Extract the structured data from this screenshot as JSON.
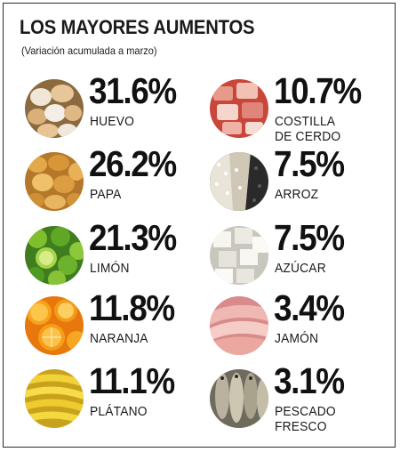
{
  "header": {
    "title": "LOS MAYORES AUMENTOS",
    "subtitle": "(Variación acumulada a marzo)"
  },
  "items": [
    {
      "value": "31.6%",
      "label": "HUEVO",
      "icon": "egg-icon"
    },
    {
      "value": "10.7%",
      "label": "COSTILLA\nDE CERDO",
      "icon": "pork-rib-icon"
    },
    {
      "value": "26.2%",
      "label": "PAPA",
      "icon": "potato-icon"
    },
    {
      "value": "7.5%",
      "label": "ARROZ",
      "icon": "rice-icon"
    },
    {
      "value": "21.3%",
      "label": "LIMÓN",
      "icon": "lemon-icon"
    },
    {
      "value": "7.5%",
      "label": "AZÚCAR",
      "icon": "sugar-icon"
    },
    {
      "value": "11.8%",
      "label": "NARANJA",
      "icon": "orange-icon"
    },
    {
      "value": "3.4%",
      "label": "JAMÓN",
      "icon": "ham-icon"
    },
    {
      "value": "11.1%",
      "label": "PLÁTANO",
      "icon": "banana-icon"
    },
    {
      "value": "3.1%",
      "label": "PESCADO\nFRESCO",
      "icon": "fish-icon"
    }
  ]
}
